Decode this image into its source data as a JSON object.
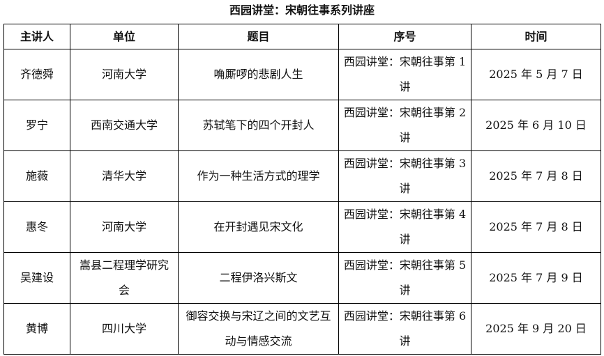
{
  "title": "西园讲堂：宋朝往事系列讲座",
  "headers": [
    "主讲人",
    "单位",
    "题目",
    "序号",
    "时间"
  ],
  "rows": [
    {
      "speaker": "齐德舜",
      "unit": "河南大学",
      "topic": "唃厮啰的悲剧人生",
      "number": "西园讲堂：宋朝往事第 1 讲",
      "date": "2025 年 5 月 7 日"
    },
    {
      "speaker": "罗宁",
      "unit": "西南交通大学",
      "topic": "苏轼笔下的四个开封人",
      "number": "西园讲堂：宋朝往事第 2 讲",
      "date": "2025 年 6 月 10 日"
    },
    {
      "speaker": "施薇",
      "unit": "清华大学",
      "topic": "作为一种生活方式的理学",
      "number": "西园讲堂：宋朝往事第 3 讲",
      "date": "2025 年 7 月 8 日"
    },
    {
      "speaker": "惠冬",
      "unit": "河南大学",
      "topic": "在开封遇见宋文化",
      "number": "西园讲堂：宋朝往事第 4 讲",
      "date": "2025 年 7 月 8 日"
    },
    {
      "speaker": "吴建设",
      "unit": "嵩县二程理学研究会",
      "topic": "二程伊洛兴斯文",
      "number": "西园讲堂：宋朝往事第 5 讲",
      "date": "2025 年 7 月 9 日"
    },
    {
      "speaker": "黄博",
      "unit": "四川大学",
      "topic": "御容交换与宋辽之间的文艺互动与情感交流",
      "number": "西园讲堂：宋朝往事第 6 讲",
      "date": "2025 年 9 月 20 日"
    }
  ]
}
